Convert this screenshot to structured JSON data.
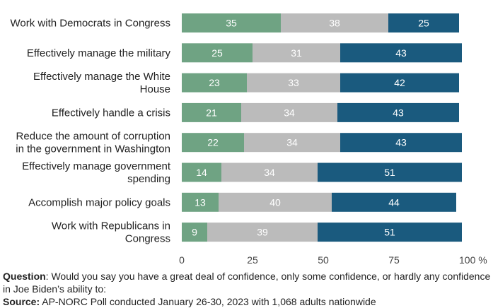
{
  "chart_data": {
    "type": "bar",
    "orientation": "horizontal",
    "stacked": true,
    "categories": [
      [
        "Work with Democrats in Congress"
      ],
      [
        "Effectively manage the military"
      ],
      [
        "Effectively manage the White",
        "House"
      ],
      [
        "Effectively handle a crisis"
      ],
      [
        "Reduce the amount of corruption",
        "in the government in Washington"
      ],
      [
        "Effectively manage government",
        "spending"
      ],
      [
        "Accomplish major policy goals"
      ],
      [
        "Work with Republicans in",
        "Congress"
      ]
    ],
    "series": [
      {
        "color": "#6fa383",
        "values": [
          35,
          25,
          23,
          21,
          22,
          14,
          13,
          9
        ]
      },
      {
        "color": "#bbbbbb",
        "values": [
          38,
          31,
          33,
          34,
          34,
          34,
          40,
          39
        ]
      },
      {
        "color": "#1a5a7e",
        "values": [
          25,
          43,
          42,
          43,
          43,
          51,
          44,
          51
        ]
      }
    ],
    "x_ticks": [
      "0",
      "25",
      "50",
      "75",
      "100 %"
    ],
    "xlim": [
      0,
      100
    ]
  },
  "footnote": {
    "question_label": "Question",
    "question_text": ": Would you say you have a great deal of confidence, only some confidence, or hardly any confidence in Joe Biden’s ability to:",
    "source_label": "Source:",
    "source_text": " AP-NORC Poll conducted January 26-30, 2023 with 1,068 adults nationwide"
  }
}
